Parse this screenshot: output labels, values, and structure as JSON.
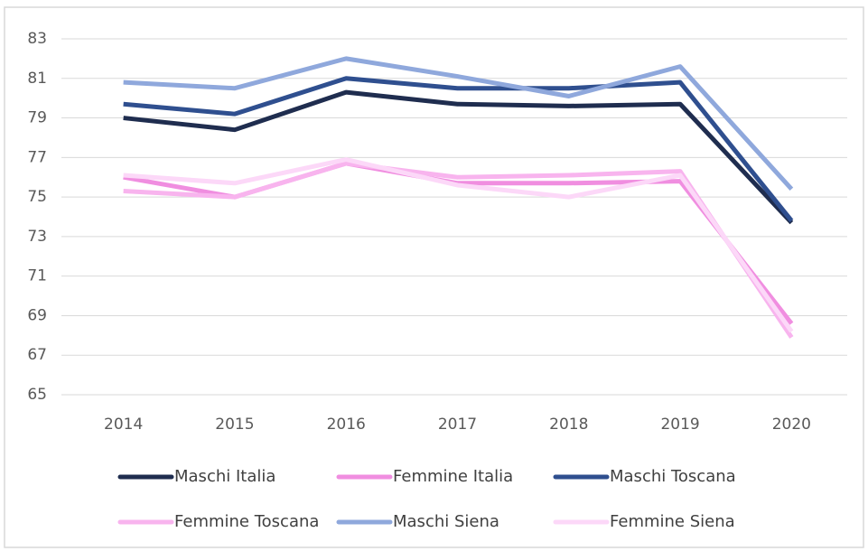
{
  "chart_data": {
    "type": "line",
    "categories": [
      "2014",
      "2015",
      "2016",
      "2017",
      "2018",
      "2019",
      "2020"
    ],
    "series": [
      {
        "name": "Maschi Italia",
        "color": "#1f2d4f",
        "values": [
          79.0,
          78.4,
          80.3,
          79.7,
          79.6,
          79.7,
          73.7
        ]
      },
      {
        "name": "Femmine Italia",
        "color": "#f08ee0",
        "values": [
          76.0,
          75.0,
          76.7,
          75.7,
          75.7,
          75.8,
          68.6
        ]
      },
      {
        "name": "Maschi Toscana",
        "color": "#2f4f8f",
        "values": [
          79.7,
          79.2,
          81.0,
          80.5,
          80.5,
          80.8,
          73.8
        ]
      },
      {
        "name": "Femmine Toscana",
        "color": "#f8b4ee",
        "values": [
          75.3,
          75.0,
          76.7,
          76.0,
          76.1,
          76.3,
          67.9
        ]
      },
      {
        "name": "Maschi Siena",
        "color": "#8fa8dc",
        "values": [
          80.8,
          80.5,
          82.0,
          81.1,
          80.1,
          81.6,
          75.4
        ]
      },
      {
        "name": "Femmine Siena",
        "color": "#fcd8f8",
        "values": [
          76.1,
          75.7,
          76.9,
          75.6,
          75.0,
          76.1,
          68.2
        ]
      }
    ],
    "ylim": [
      65,
      83
    ],
    "yticks": [
      65,
      67,
      69,
      71,
      73,
      75,
      77,
      79,
      81,
      83
    ],
    "grid": true,
    "legend": "bottom"
  }
}
